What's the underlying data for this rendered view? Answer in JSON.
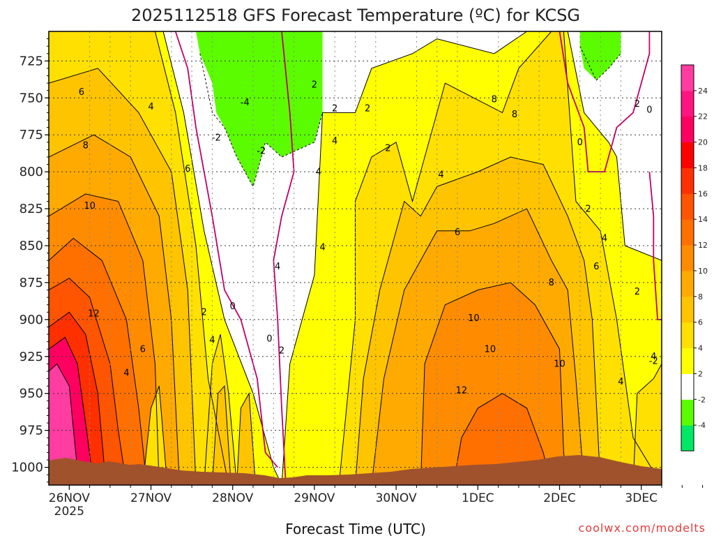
{
  "chart_data": {
    "type": "contour",
    "title": "2025112518 GFS Forecast Temperature (ºC) for KCSG",
    "xlabel": "Forecast Time (UTC)",
    "ylabel": "",
    "credit": "coolwx.com/modelts",
    "x_ticks": [
      "26NOV",
      "27NOV",
      "28NOV",
      "29NOV",
      "30NOV",
      "1DEC",
      "2DEC",
      "3DEC"
    ],
    "x_year": "2025",
    "y_ticks": [
      725,
      750,
      775,
      800,
      825,
      850,
      875,
      900,
      925,
      950,
      975,
      1000
    ],
    "y_range_hPa": [
      705,
      1012
    ],
    "x_range_days": [
      -0.25,
      7.25
    ],
    "colorbar": {
      "levels": [
        -6,
        -4,
        -2,
        2,
        4,
        6,
        8,
        10,
        12,
        14,
        16,
        18,
        20,
        22,
        24,
        26
      ],
      "tick_labels": [
        "-4",
        "-2",
        "2",
        "4",
        "6",
        "8",
        "10",
        "12",
        "14",
        "16",
        "18",
        "20",
        "22",
        "24"
      ],
      "colors": [
        "#00e864",
        "#5cfc00",
        "#ffffff",
        "#ffff00",
        "#ffe000",
        "#ffc400",
        "#ffaa00",
        "#ff8c00",
        "#ff7000",
        "#ff5400",
        "#ff3000",
        "#ff0000",
        "#ff0060",
        "#ff1480",
        "#ff3ca0"
      ]
    },
    "contour_labels": [
      "6",
      "4",
      "8",
      "6",
      "10",
      "12",
      "6",
      "4",
      "2",
      "4",
      "0",
      "-2",
      "-4",
      "-2",
      "0",
      "2",
      "4",
      "2",
      "4",
      "4",
      "4",
      "2",
      "2",
      "2",
      "4",
      "6",
      "8",
      "8",
      "10",
      "10",
      "12",
      "8",
      "10",
      "2",
      "0",
      "4",
      "2",
      "0",
      "-2",
      "6",
      "4",
      "2",
      "4"
    ],
    "freezing_contour_color": "#c0006a",
    "ground_color": "#a0522d",
    "grid": "dotted"
  }
}
